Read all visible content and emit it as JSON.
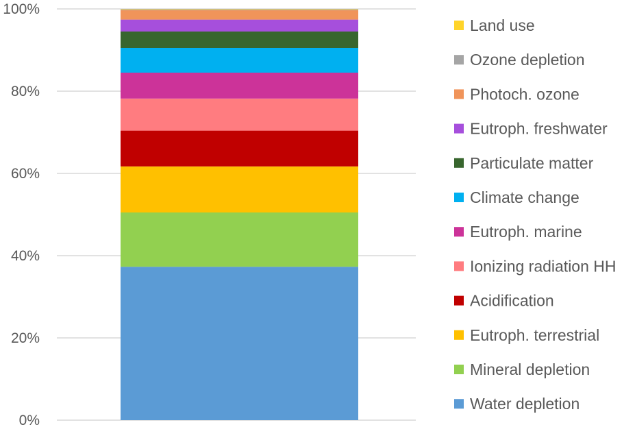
{
  "chart_data": {
    "type": "bar",
    "stacked": true,
    "normalized_percent": true,
    "categories": [
      ""
    ],
    "title": "",
    "xlabel": "",
    "ylabel": "",
    "ylim": [
      0,
      100
    ],
    "yticks": [
      "0%",
      "20%",
      "40%",
      "60%",
      "80%",
      "100%"
    ],
    "grid": true,
    "legend_position": "right",
    "series": [
      {
        "name": "Water depletion",
        "values": [
          37.3
        ],
        "color": "#5B9BD5"
      },
      {
        "name": "Mineral depletion",
        "values": [
          13.2
        ],
        "color": "#92D050"
      },
      {
        "name": "Eutroph. terrestrial",
        "values": [
          11.2
        ],
        "color": "#FFC000"
      },
      {
        "name": "Acidification",
        "values": [
          8.7
        ],
        "color": "#C00000"
      },
      {
        "name": "Ionizing radiation HH",
        "values": [
          7.8
        ],
        "color": "#FF7C80"
      },
      {
        "name": "Eutroph. marine",
        "values": [
          6.3
        ],
        "color": "#CC3399"
      },
      {
        "name": "Climate change",
        "values": [
          6.0
        ],
        "color": "#00B0F0"
      },
      {
        "name": "Particulate matter",
        "values": [
          4.0
        ],
        "color": "#38662E"
      },
      {
        "name": "Eutroph. freshwater",
        "values": [
          2.9
        ],
        "color": "#A64FDC"
      },
      {
        "name": "Photoch. ozone",
        "values": [
          2.3
        ],
        "color": "#F0945A"
      },
      {
        "name": "Ozone depletion",
        "values": [
          0.2
        ],
        "color": "#A5A5A5"
      },
      {
        "name": "Land use",
        "values": [
          0.1
        ],
        "color": "#FFD42A"
      }
    ]
  }
}
